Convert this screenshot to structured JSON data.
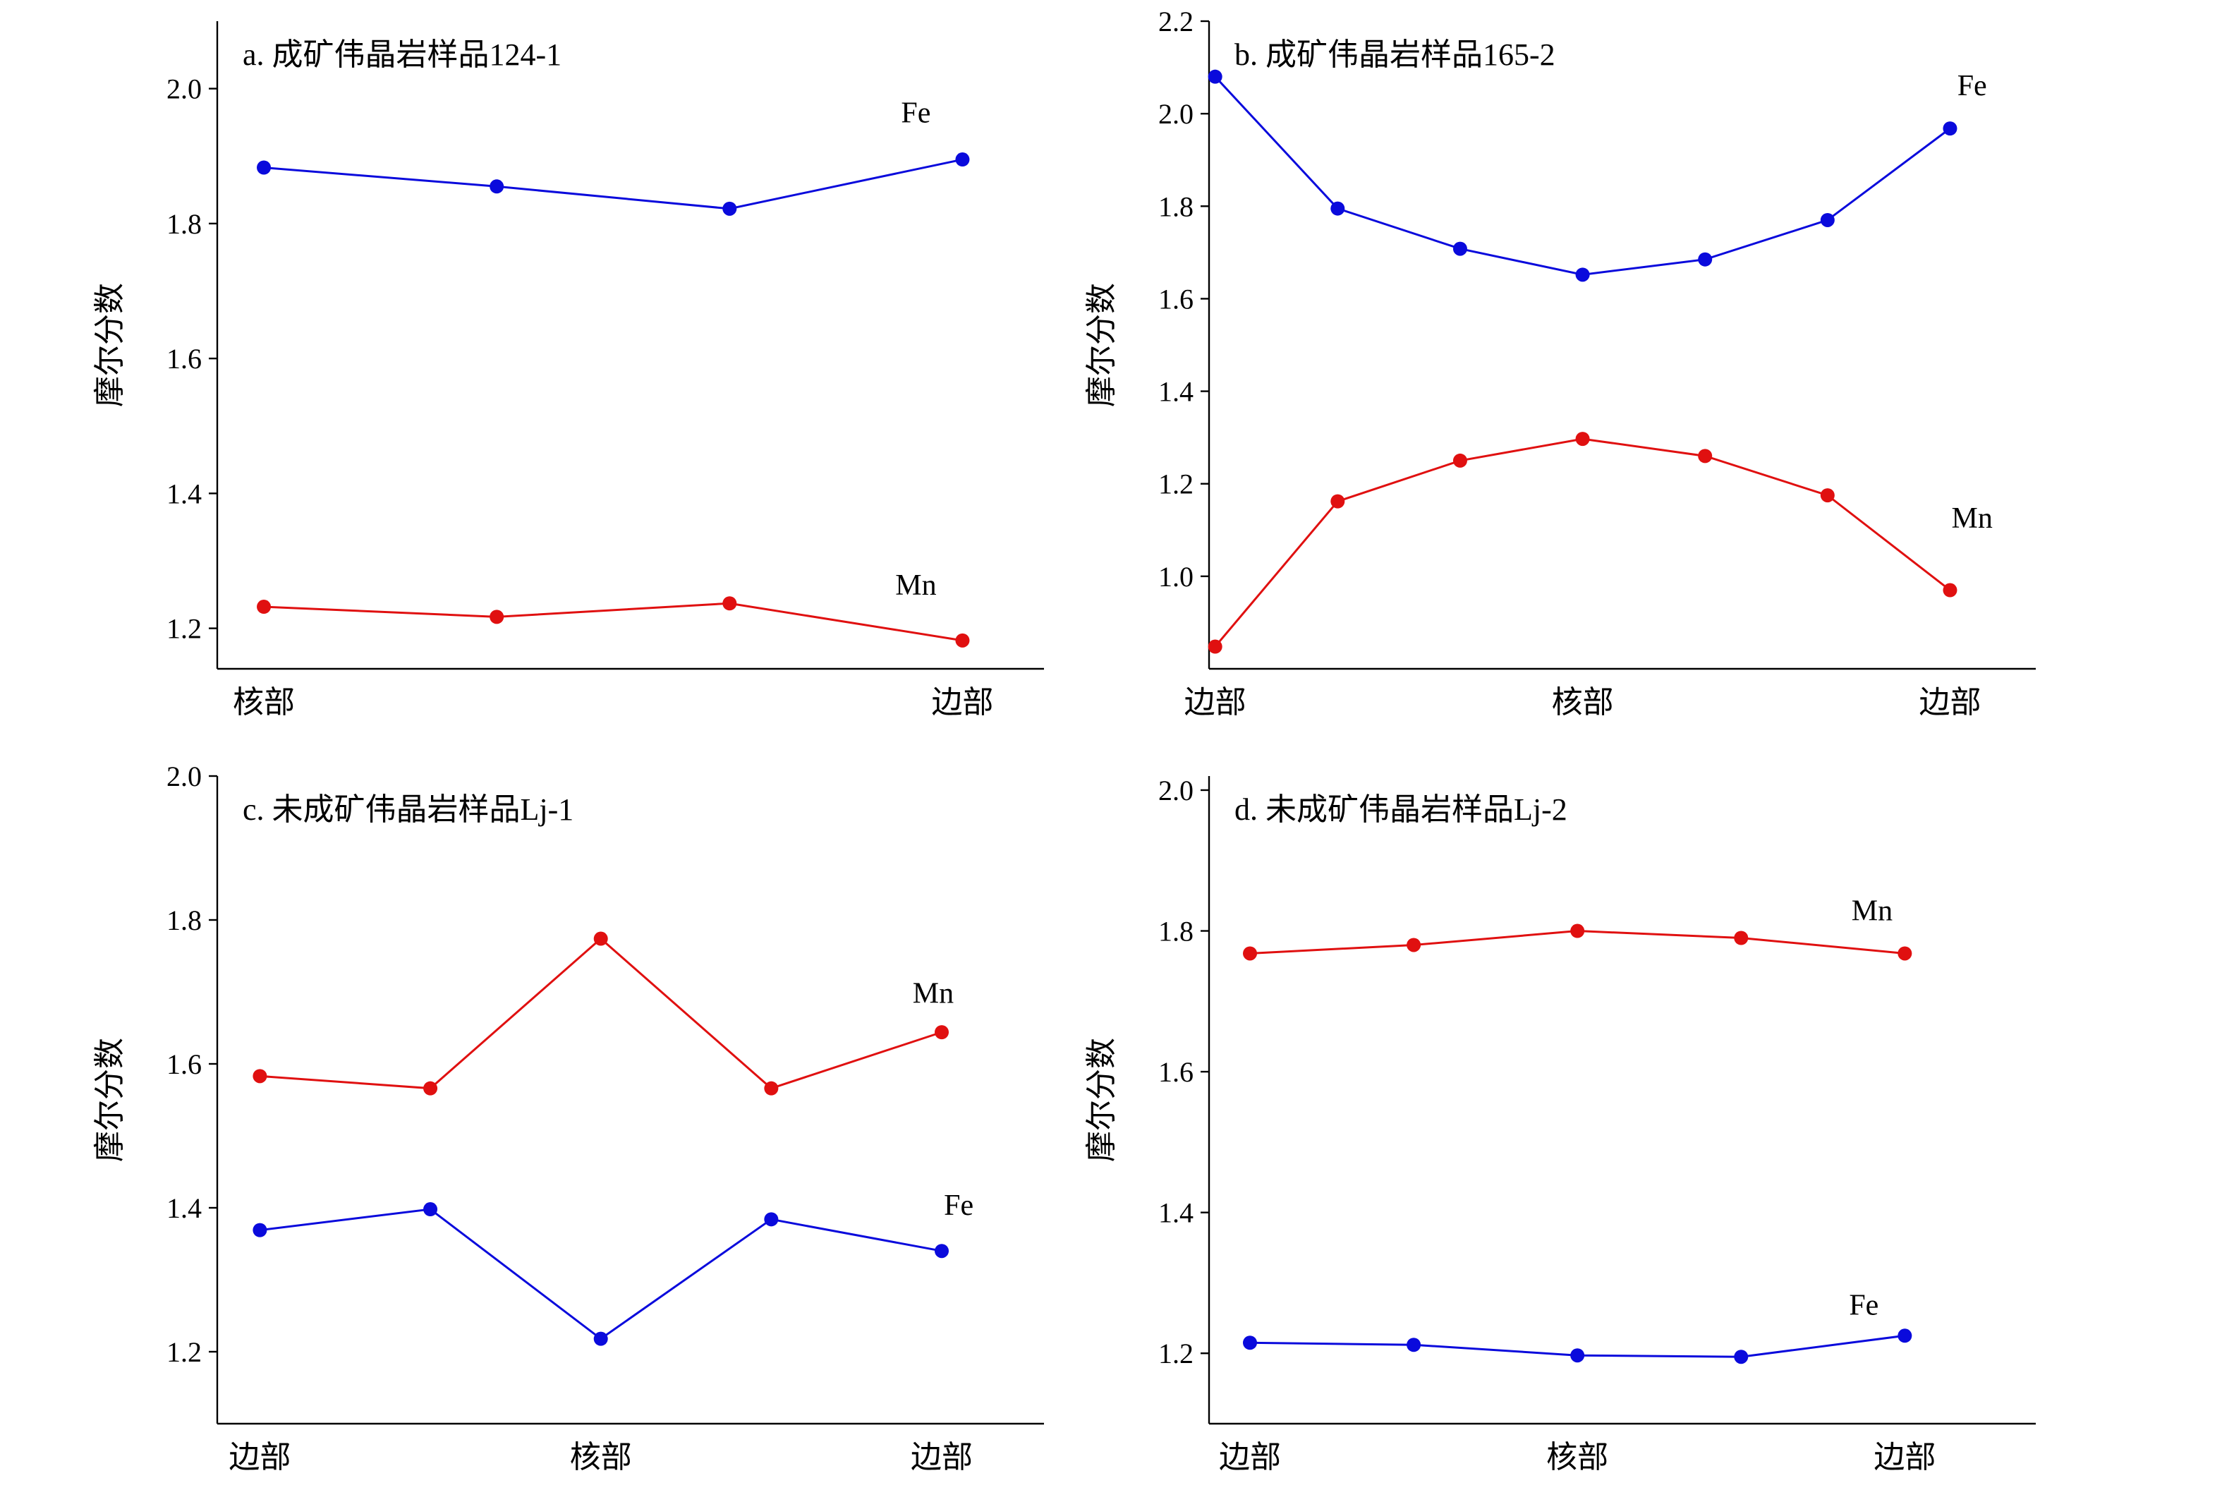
{
  "chart_data": [
    {
      "type": "line",
      "title": "a. 成矿伟晶岩样品124-1",
      "ylabel": "摩尔分数",
      "ylim": [
        1.14,
        2.1
      ],
      "yticks": [
        1.2,
        1.4,
        1.6,
        1.8,
        2.0
      ],
      "ytick_labels": [
        "1.2",
        "1.4",
        "1.6",
        "1.8",
        "2.0"
      ],
      "x": [
        0,
        1,
        2,
        3
      ],
      "xlim": [
        -0.2,
        3.35
      ],
      "category_labels": [
        {
          "x": 0,
          "label": "核部"
        },
        {
          "x": 3,
          "label": "边部"
        }
      ],
      "series": [
        {
          "name": "Fe",
          "color": "#0a0adc",
          "values": [
            1.883,
            1.855,
            1.822,
            1.895
          ],
          "label_x": 2.8,
          "label_y": 1.95
        },
        {
          "name": "Mn",
          "color": "#e01010",
          "values": [
            1.232,
            1.217,
            1.237,
            1.182
          ],
          "label_x": 2.8,
          "label_y": 1.25
        }
      ]
    },
    {
      "type": "line",
      "title": "b. 成矿伟晶岩样品165-2",
      "ylabel": "摩尔分数",
      "ylim": [
        0.8,
        2.2
      ],
      "yticks": [
        1.0,
        1.2,
        1.4,
        1.6,
        1.8,
        2.0,
        2.2
      ],
      "ytick_labels": [
        "1.0",
        "1.2",
        "1.4",
        "1.6",
        "1.8",
        "2.0",
        "2.2"
      ],
      "x": [
        0,
        1,
        2,
        3,
        4,
        5,
        6
      ],
      "xlim": [
        -0.05,
        6.7
      ],
      "category_labels": [
        {
          "x": 0,
          "label": "边部"
        },
        {
          "x": 3,
          "label": "核部"
        },
        {
          "x": 6,
          "label": "边部"
        }
      ],
      "series": [
        {
          "name": "Fe",
          "color": "#0a0adc",
          "values": [
            2.08,
            1.795,
            1.708,
            1.652,
            1.685,
            1.77,
            1.968
          ],
          "label_x": 6.18,
          "label_y": 2.04
        },
        {
          "name": "Mn",
          "color": "#e01010",
          "values": [
            0.848,
            1.162,
            1.25,
            1.297,
            1.26,
            1.175,
            0.97
          ],
          "label_x": 6.18,
          "label_y": 1.105
        }
      ]
    },
    {
      "type": "line",
      "title": "c. 未成矿伟晶岩样品Lj-1",
      "ylabel": "摩尔分数",
      "ylim": [
        1.1,
        2.0
      ],
      "yticks": [
        1.2,
        1.4,
        1.6,
        1.8,
        2.0
      ],
      "ytick_labels": [
        "1.2",
        "1.4",
        "1.6",
        "1.8",
        "2.0"
      ],
      "x": [
        0,
        1,
        2,
        3,
        4
      ],
      "xlim": [
        -0.25,
        4.6
      ],
      "category_labels": [
        {
          "x": 0,
          "label": "边部"
        },
        {
          "x": 2,
          "label": "核部"
        },
        {
          "x": 4,
          "label": "边部"
        }
      ],
      "series": [
        {
          "name": "Mn",
          "color": "#e01010",
          "values": [
            1.583,
            1.566,
            1.774,
            1.566,
            1.644
          ],
          "label_x": 3.95,
          "label_y": 1.685
        },
        {
          "name": "Fe",
          "color": "#0a0adc",
          "values": [
            1.369,
            1.398,
            1.218,
            1.384,
            1.34
          ],
          "label_x": 4.1,
          "label_y": 1.39
        }
      ]
    },
    {
      "type": "line",
      "title": "d. 未成矿伟晶岩样品Lj-2",
      "ylabel": "摩尔分数",
      "ylim": [
        1.1,
        2.02
      ],
      "yticks": [
        1.2,
        1.4,
        1.6,
        1.8,
        2.0
      ],
      "ytick_labels": [
        "1.2",
        "1.4",
        "1.6",
        "1.8",
        "2.0"
      ],
      "x": [
        0,
        1,
        2,
        3,
        4
      ],
      "xlim": [
        -0.25,
        4.8
      ],
      "category_labels": [
        {
          "x": 0,
          "label": "边部"
        },
        {
          "x": 2,
          "label": "核部"
        },
        {
          "x": 4,
          "label": "边部"
        }
      ],
      "series": [
        {
          "name": "Mn",
          "color": "#e01010",
          "values": [
            1.768,
            1.78,
            1.8,
            1.79,
            1.768
          ],
          "label_x": 3.8,
          "label_y": 1.815
        },
        {
          "name": "Fe",
          "color": "#0a0adc",
          "values": [
            1.215,
            1.212,
            1.197,
            1.195,
            1.225
          ],
          "label_x": 3.75,
          "label_y": 1.255
        }
      ]
    }
  ]
}
